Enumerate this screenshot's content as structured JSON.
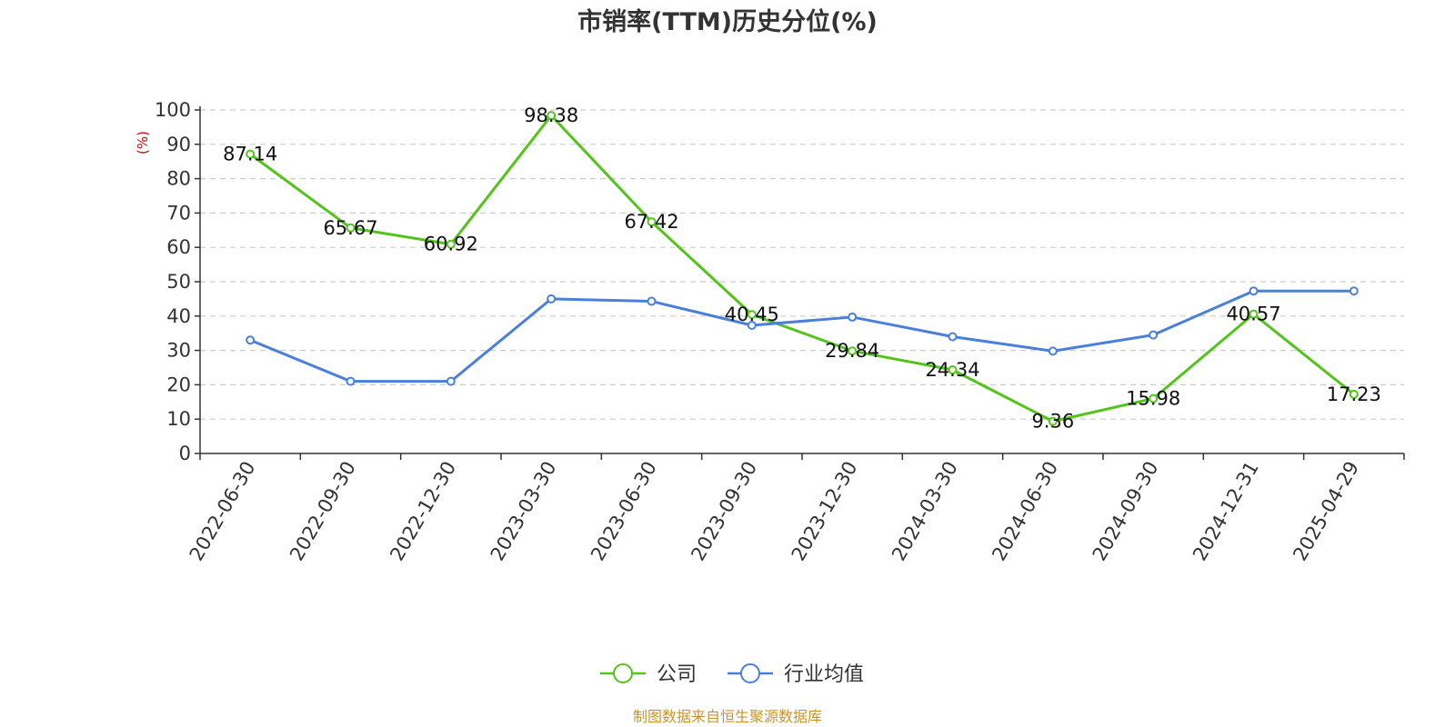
{
  "chart_data": {
    "type": "line",
    "title": "市销率(TTM)历史分位(%)",
    "ylabel": "(%)",
    "ylim": [
      0,
      100
    ],
    "yticks": [
      0,
      10,
      20,
      30,
      40,
      50,
      60,
      70,
      80,
      90,
      100
    ],
    "grid": true,
    "legend_position": "bottom-center",
    "categories": [
      "2022-06-30",
      "2022-09-30",
      "2022-12-30",
      "2023-03-30",
      "2023-06-30",
      "2023-09-30",
      "2023-12-30",
      "2024-03-30",
      "2024-06-30",
      "2024-09-30",
      "2024-12-31",
      "2025-04-29"
    ],
    "series": [
      {
        "name": "公司",
        "color": "#52c41a",
        "values": [
          87.14,
          65.67,
          60.92,
          98.38,
          67.42,
          40.45,
          29.84,
          24.34,
          9.36,
          15.98,
          40.57,
          17.23
        ],
        "labels": [
          "87.14",
          "65.67",
          "60.92",
          "98.38",
          "67.42",
          "40.45",
          "29.84",
          "24.34",
          "9.36",
          "15.98",
          "40.57",
          "17.23"
        ]
      },
      {
        "name": "行业均值",
        "color": "#4a7fdb",
        "values": [
          33.0,
          21.0,
          21.0,
          45.0,
          44.3,
          37.3,
          39.7,
          34.0,
          29.8,
          34.5,
          47.3,
          47.3
        ]
      }
    ],
    "unit_color": "#e00000",
    "source": "制图数据来自恒生聚源数据库",
    "source_color": "#c8952c"
  }
}
